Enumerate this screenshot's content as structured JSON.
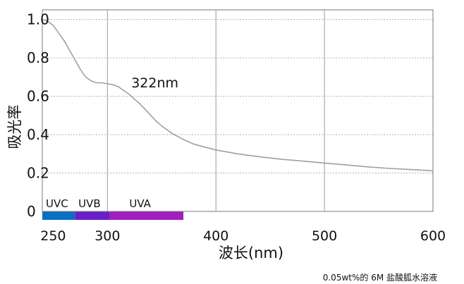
{
  "chart_data": {
    "type": "line",
    "title": "",
    "xlabel": "波长(nm)",
    "ylabel": "吸光率",
    "xlim": [
      240,
      600
    ],
    "ylim": [
      0,
      1.05
    ],
    "x_ticks": [
      "250",
      "300",
      "400",
      "500",
      "600"
    ],
    "y_ticks": [
      "0",
      "0.2",
      "0.4",
      "0.6",
      "0.8",
      "1.0"
    ],
    "grid": true,
    "annotation": {
      "text": "322nm",
      "x": 322,
      "y": 0.67
    },
    "bands": [
      {
        "label": "UVC",
        "from": 240,
        "to": 270,
        "color": "#0a6fc2"
      },
      {
        "label": "UVB",
        "from": 270,
        "to": 302,
        "color": "#6a1fc8"
      },
      {
        "label": "UVA",
        "from": 302,
        "to": 370,
        "color": "#a020c0"
      }
    ],
    "caption": "0.05wt%的 6M 盐酸胍水溶液",
    "series": [
      {
        "color": "#a0a0a0",
        "x": [
          240,
          245,
          250,
          255,
          260,
          265,
          270,
          275,
          280,
          285,
          290,
          295,
          300,
          305,
          310,
          315,
          320,
          325,
          330,
          335,
          340,
          345,
          350,
          360,
          370,
          380,
          390,
          400,
          420,
          440,
          460,
          480,
          500,
          520,
          540,
          560,
          580,
          600
        ],
        "y": [
          1.0,
          0.99,
          0.97,
          0.93,
          0.89,
          0.84,
          0.79,
          0.74,
          0.7,
          0.68,
          0.67,
          0.67,
          0.665,
          0.66,
          0.65,
          0.63,
          0.61,
          0.585,
          0.56,
          0.53,
          0.5,
          0.47,
          0.445,
          0.405,
          0.375,
          0.35,
          0.335,
          0.32,
          0.3,
          0.285,
          0.272,
          0.262,
          0.252,
          0.242,
          0.232,
          0.224,
          0.218,
          0.212
        ]
      }
    ]
  }
}
